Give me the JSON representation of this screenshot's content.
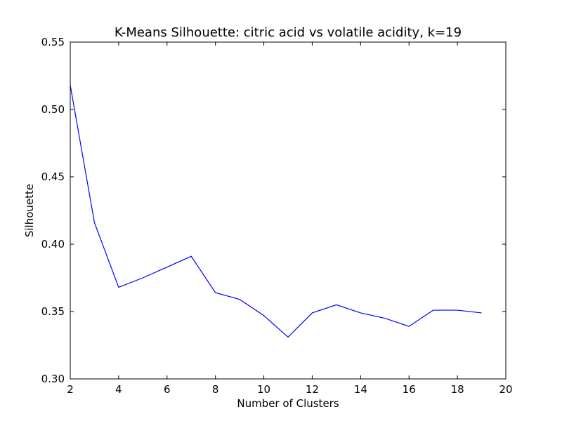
{
  "chart_data": {
    "type": "line",
    "title": "K-Means Silhouette: citric acid vs volatile acidity, k=19",
    "xlabel": "Number of Clusters",
    "ylabel": "Silhouette",
    "xlim": [
      2,
      20
    ],
    "ylim": [
      0.3,
      0.55
    ],
    "xticks": [
      2,
      4,
      6,
      8,
      10,
      12,
      14,
      16,
      18,
      20
    ],
    "xtick_labels": [
      "2",
      "4",
      "6",
      "8",
      "10",
      "12",
      "14",
      "16",
      "18",
      "20"
    ],
    "yticks": [
      0.3,
      0.35,
      0.4,
      0.45,
      0.5,
      0.55
    ],
    "ytick_labels": [
      "0.30",
      "0.35",
      "0.40",
      "0.45",
      "0.50",
      "0.55"
    ],
    "grid": false,
    "series": [
      {
        "color": "#0000ff",
        "x": [
          2,
          3,
          4,
          5,
          6,
          7,
          8,
          9,
          10,
          11,
          12,
          13,
          14,
          15,
          16,
          17,
          18,
          19
        ],
        "y": [
          0.518,
          0.416,
          0.368,
          0.375,
          0.383,
          0.391,
          0.364,
          0.359,
          0.347,
          0.331,
          0.349,
          0.355,
          0.349,
          0.345,
          0.339,
          0.351,
          0.351,
          0.349
        ]
      }
    ]
  }
}
